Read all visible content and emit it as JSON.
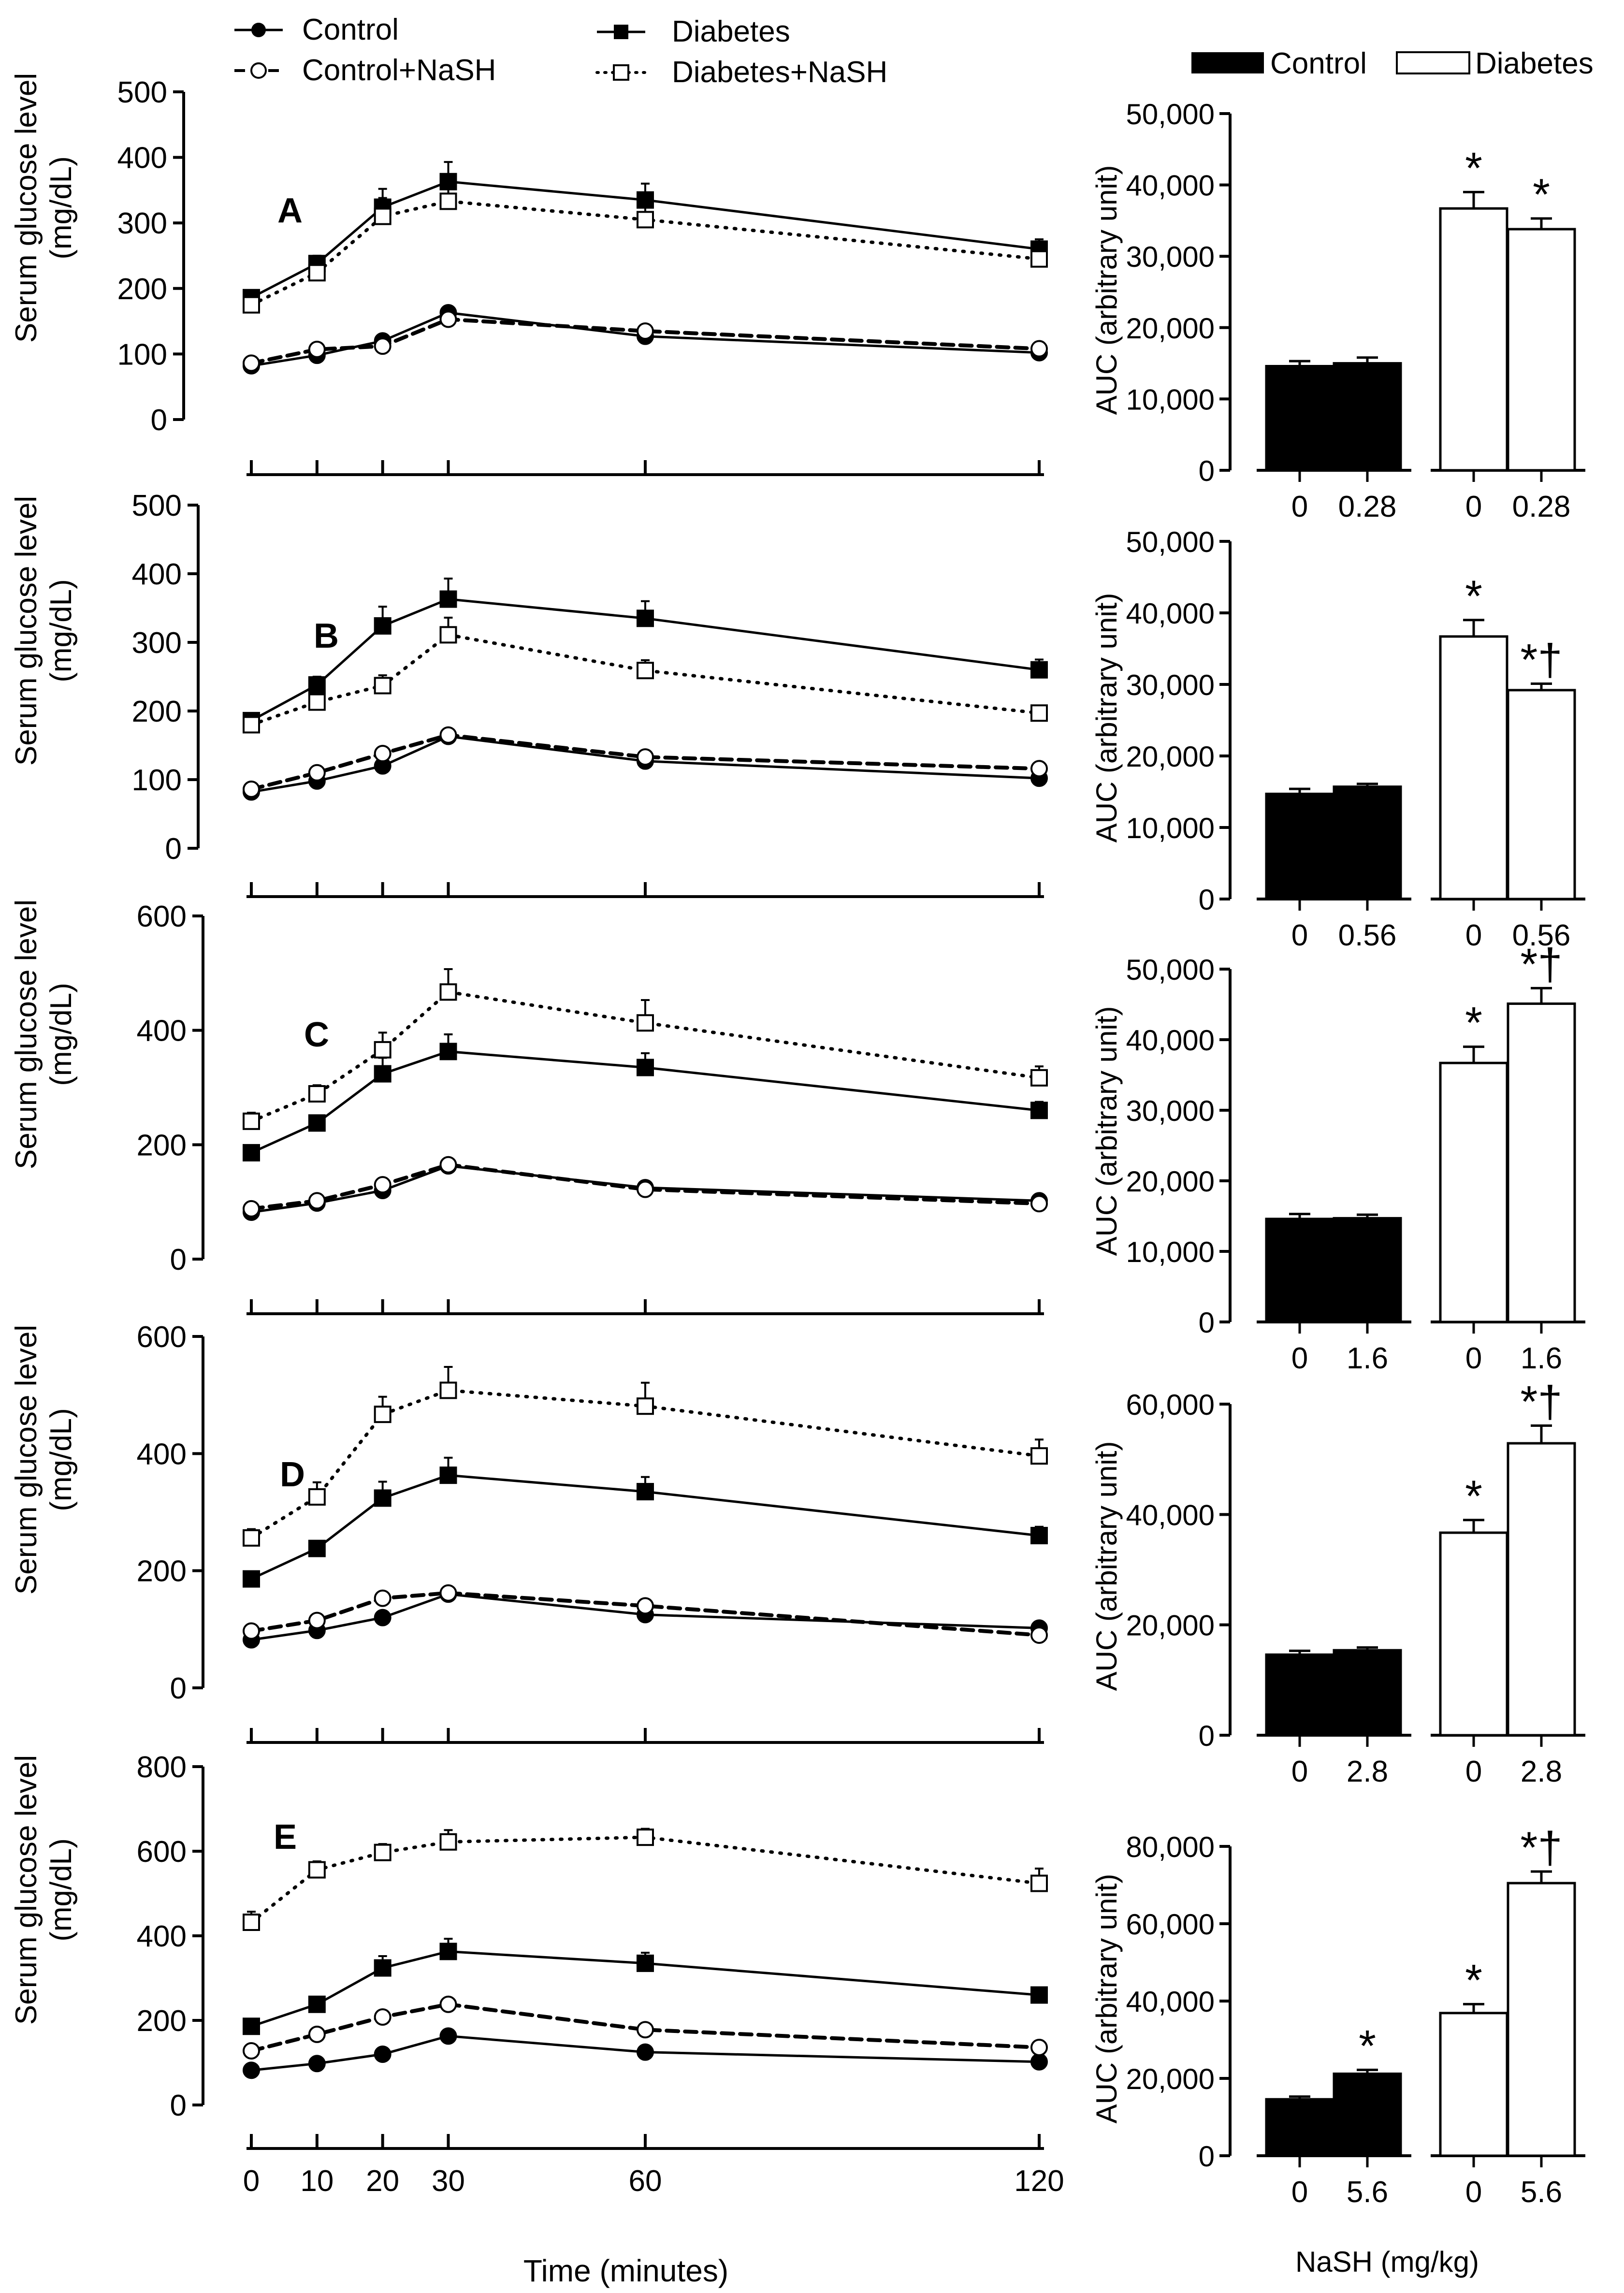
{
  "legend_left": {
    "control": "Control",
    "control_nash": "Control+NaSH",
    "diabetes": "Diabetes",
    "diabetes_nash": "Diabetes+NaSH"
  },
  "legend_right": {
    "control": "Control",
    "diabetes": "Diabetes"
  },
  "line_ylabel": [
    "Serum glucose level",
    "(mg/dL)"
  ],
  "bar_ylabel": "AUC (arbitrary unit)",
  "time_xlabel": "Time (minutes)",
  "dose_xlabel": "NaSH (mg/kg)",
  "colors": {
    "control_bar": "#000000",
    "diabetes_bar": "#ffffff",
    "axis": "#000000"
  },
  "chart_data": [
    {
      "panel": "A",
      "type": "line",
      "x": [
        0,
        10,
        20,
        30,
        60,
        120
      ],
      "x_ticks": [
        "0",
        "10",
        "20",
        "30",
        "60",
        "120"
      ],
      "ylim": [
        0,
        500
      ],
      "y_ticks": [
        "0",
        "100",
        "200",
        "300",
        "400",
        "500"
      ],
      "series": [
        {
          "name": "Control",
          "values": [
            82,
            98,
            120,
            163,
            127,
            102
          ],
          "err": [
            5,
            5,
            5,
            7,
            5,
            5
          ]
        },
        {
          "name": "Control+NaSH",
          "values": [
            86,
            107,
            112,
            153,
            135,
            108
          ],
          "err": [
            5,
            5,
            5,
            7,
            5,
            5
          ]
        },
        {
          "name": "Diabetes",
          "values": [
            186,
            238,
            324,
            363,
            335,
            260
          ],
          "err": [
            8,
            12,
            28,
            30,
            25,
            15
          ]
        },
        {
          "name": "Diabetes+NaSH",
          "values": [
            175,
            224,
            310,
            333,
            305,
            245
          ],
          "err": [
            8,
            12,
            28,
            20,
            20,
            12
          ]
        }
      ]
    },
    {
      "panel": "A",
      "type": "bar",
      "categories": [
        "0",
        "0.28",
        "0",
        "0.28"
      ],
      "values": [
        14600,
        15000,
        36700,
        33800
      ],
      "err": [
        700,
        800,
        2300,
        1500
      ],
      "marks": [
        "",
        "",
        "*",
        "*"
      ],
      "ylim": [
        0,
        50000
      ],
      "y_ticks": [
        "0",
        "10,000",
        "20,000",
        "30,000",
        "40,000",
        "50,000"
      ]
    },
    {
      "panel": "B",
      "type": "line",
      "x": [
        0,
        10,
        20,
        30,
        60,
        120
      ],
      "x_ticks": [
        "0",
        "10",
        "20",
        "30",
        "60",
        "120"
      ],
      "ylim": [
        0,
        500
      ],
      "y_ticks": [
        "0",
        "100",
        "200",
        "300",
        "400",
        "500"
      ],
      "series": [
        {
          "name": "Control",
          "values": [
            82,
            98,
            120,
            163,
            127,
            102
          ],
          "err": [
            5,
            5,
            5,
            7,
            5,
            5
          ]
        },
        {
          "name": "Control+NaSH",
          "values": [
            86,
            110,
            138,
            165,
            133,
            116
          ],
          "err": [
            5,
            5,
            5,
            7,
            5,
            5
          ]
        },
        {
          "name": "Diabetes",
          "values": [
            186,
            238,
            324,
            363,
            335,
            260
          ],
          "err": [
            8,
            12,
            28,
            30,
            25,
            15
          ]
        },
        {
          "name": "Diabetes+NaSH",
          "values": [
            180,
            213,
            237,
            311,
            259,
            197
          ],
          "err": [
            8,
            15,
            15,
            25,
            15,
            8
          ]
        }
      ]
    },
    {
      "panel": "B",
      "type": "bar",
      "categories": [
        "0",
        "0.56",
        "0",
        "0.56"
      ],
      "values": [
        14700,
        15700,
        36700,
        29200
      ],
      "err": [
        700,
        400,
        2300,
        900
      ],
      "marks": [
        "",
        "",
        "*",
        "*†"
      ],
      "ylim": [
        0,
        50000
      ],
      "y_ticks": [
        "0",
        "10,000",
        "20,000",
        "30,000",
        "40,000",
        "50,000"
      ]
    },
    {
      "panel": "C",
      "type": "line",
      "x": [
        0,
        10,
        20,
        30,
        60,
        120
      ],
      "x_ticks": [
        "0",
        "10",
        "20",
        "30",
        "60",
        "120"
      ],
      "ylim": [
        0,
        600
      ],
      "y_ticks": [
        "0",
        "200",
        "400",
        "600"
      ],
      "series": [
        {
          "name": "Control",
          "values": [
            82,
            98,
            120,
            163,
            125,
            102
          ],
          "err": [
            5,
            5,
            5,
            7,
            5,
            5
          ]
        },
        {
          "name": "Control+NaSH",
          "values": [
            88,
            102,
            130,
            165,
            122,
            97
          ],
          "err": [
            5,
            5,
            5,
            7,
            5,
            5
          ]
        },
        {
          "name": "Diabetes",
          "values": [
            186,
            238,
            324,
            363,
            335,
            260
          ],
          "err": [
            8,
            12,
            28,
            30,
            25,
            15
          ]
        },
        {
          "name": "Diabetes+NaSH",
          "values": [
            241,
            289,
            366,
            467,
            413,
            317
          ],
          "err": [
            15,
            15,
            30,
            40,
            40,
            20
          ]
        }
      ]
    },
    {
      "panel": "C",
      "type": "bar",
      "categories": [
        "0",
        "1.6",
        "0",
        "1.6"
      ],
      "values": [
        14600,
        14700,
        36700,
        45100
      ],
      "err": [
        700,
        500,
        2300,
        2200
      ],
      "marks": [
        "",
        "",
        "*",
        "*†"
      ],
      "ylim": [
        0,
        50000
      ],
      "y_ticks": [
        "0",
        "10,000",
        "20,000",
        "30,000",
        "40,000",
        "50,000"
      ]
    },
    {
      "panel": "D",
      "type": "line",
      "x": [
        0,
        10,
        20,
        30,
        60,
        120
      ],
      "x_ticks": [
        "0",
        "10",
        "20",
        "30",
        "60",
        "120"
      ],
      "ylim": [
        0,
        600
      ],
      "y_ticks": [
        "0",
        "200",
        "400",
        "600"
      ],
      "series": [
        {
          "name": "Control",
          "values": [
            82,
            98,
            120,
            160,
            125,
            102
          ],
          "err": [
            5,
            5,
            5,
            7,
            5,
            5
          ]
        },
        {
          "name": "Control+NaSH",
          "values": [
            97,
            115,
            153,
            162,
            140,
            90
          ],
          "err": [
            5,
            5,
            5,
            7,
            5,
            5
          ]
        },
        {
          "name": "Diabetes",
          "values": [
            186,
            238,
            324,
            363,
            335,
            260
          ],
          "err": [
            8,
            12,
            28,
            30,
            25,
            15
          ]
        },
        {
          "name": "Diabetes+NaSH",
          "values": [
            256,
            326,
            467,
            508,
            481,
            396
          ],
          "err": [
            15,
            25,
            30,
            40,
            40,
            28
          ]
        }
      ]
    },
    {
      "panel": "D",
      "type": "bar",
      "categories": [
        "0",
        "2.8",
        "0",
        "2.8"
      ],
      "values": [
        14600,
        15400,
        36700,
        52900
      ],
      "err": [
        700,
        500,
        2300,
        3200
      ],
      "marks": [
        "",
        "",
        "*",
        "*†"
      ],
      "ylim": [
        0,
        60000
      ],
      "y_ticks": [
        "0",
        "20,000",
        "40,000",
        "60,000"
      ]
    },
    {
      "panel": "E",
      "type": "line",
      "x": [
        0,
        10,
        20,
        30,
        60,
        120
      ],
      "x_ticks": [
        "0",
        "10",
        "20",
        "30",
        "60",
        "120"
      ],
      "ylim": [
        0,
        800
      ],
      "y_ticks": [
        "0",
        "200",
        "400",
        "600",
        "800"
      ],
      "series": [
        {
          "name": "Control",
          "values": [
            82,
            98,
            120,
            163,
            125,
            102
          ],
          "err": [
            5,
            5,
            5,
            7,
            5,
            5
          ]
        },
        {
          "name": "Control+NaSH",
          "values": [
            128,
            167,
            208,
            238,
            178,
            136
          ],
          "err": [
            5,
            5,
            5,
            7,
            5,
            5
          ]
        },
        {
          "name": "Diabetes",
          "values": [
            186,
            238,
            324,
            363,
            335,
            260
          ],
          "err": [
            8,
            12,
            28,
            30,
            25,
            15
          ]
        },
        {
          "name": "Diabetes+NaSH",
          "values": [
            432,
            556,
            597,
            622,
            633,
            524
          ],
          "err": [
            25,
            20,
            20,
            28,
            20,
            35
          ]
        }
      ]
    },
    {
      "panel": "E",
      "type": "bar",
      "categories": [
        "0",
        "5.6",
        "0",
        "5.6"
      ],
      "values": [
        14600,
        21200,
        36900,
        70500
      ],
      "err": [
        700,
        1000,
        2300,
        3000
      ],
      "marks": [
        "",
        "*",
        "*",
        "*†"
      ],
      "ylim": [
        0,
        80000
      ],
      "y_ticks": [
        "0",
        "20,000",
        "40,000",
        "60,000",
        "80,000"
      ]
    }
  ]
}
